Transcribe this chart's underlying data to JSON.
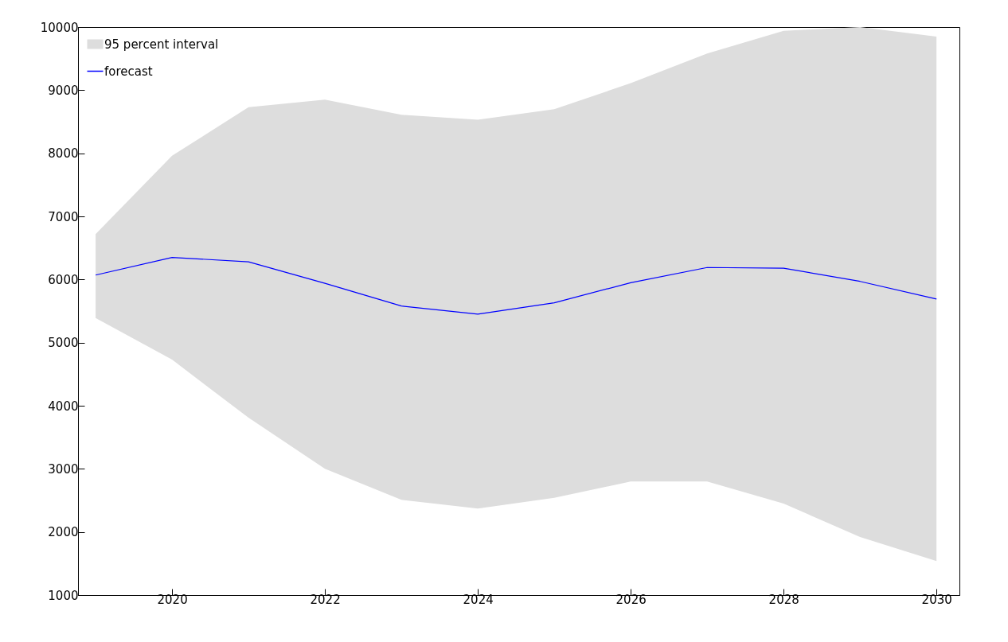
{
  "chart_data": {
    "type": "line",
    "x": [
      2019,
      2020,
      2021,
      2022,
      2023,
      2024,
      2025,
      2026,
      2027,
      2028,
      2029,
      2030
    ],
    "series": [
      {
        "name": "forecast",
        "color": "#0000ff",
        "values": [
          6070,
          6350,
          6280,
          5940,
          5580,
          5450,
          5630,
          5950,
          6190,
          6180,
          5970,
          5690
        ],
        "lower": [
          5390,
          4730,
          3810,
          3000,
          2510,
          2370,
          2540,
          2800,
          2800,
          2450,
          1920,
          1540
        ],
        "upper": [
          6720,
          7960,
          8730,
          8850,
          8610,
          8530,
          8700,
          9110,
          9580,
          9940,
          10000,
          9850
        ]
      }
    ],
    "annotations": [
      "95 percent interval"
    ],
    "xlim": [
      2018.77,
      2030.3
    ],
    "xticks": [
      2020,
      2022,
      2024,
      2026,
      2028,
      2030
    ],
    "ylim": [
      1000,
      10000
    ],
    "yticks": [
      1000,
      2000,
      3000,
      4000,
      5000,
      6000,
      7000,
      8000,
      9000,
      10000
    ],
    "legend": "top left",
    "grid": false,
    "line_style": "solid"
  }
}
